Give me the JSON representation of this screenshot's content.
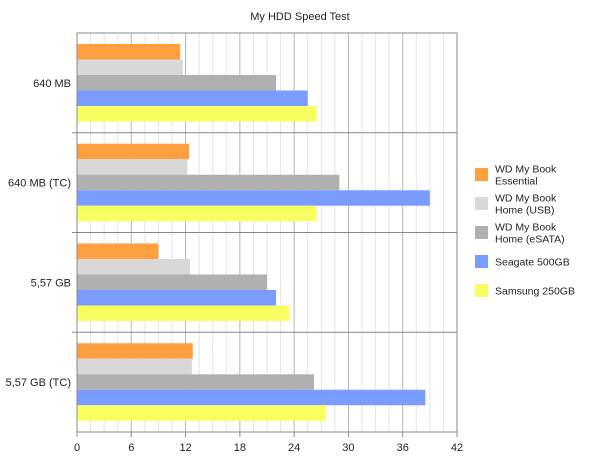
{
  "chart_data": {
    "type": "bar",
    "orientation": "horizontal",
    "title": "My HDD Speed Test",
    "xlabel": "",
    "ylabel": "",
    "xlim": [
      0,
      42
    ],
    "xticks": [
      "0",
      "6",
      "12",
      "18",
      "24",
      "30",
      "36",
      "42"
    ],
    "grid": true,
    "legend_position": "right",
    "categories": [
      "640 MB",
      "640 MB (TC)",
      "5,57 GB",
      "5,57 GB (TC)"
    ],
    "series": [
      {
        "name_lines": [
          "WD My Book",
          "Essential"
        ],
        "color": "#ffa040",
        "values": [
          11.4,
          12.4,
          9.0,
          12.8
        ]
      },
      {
        "name_lines": [
          "WD My Book",
          "Home (USB)"
        ],
        "color": "#d8d8d8",
        "values": [
          11.7,
          12.2,
          12.5,
          12.7
        ]
      },
      {
        "name_lines": [
          "WD My Book",
          "Home (eSATA)"
        ],
        "color": "#b0b0b0",
        "values": [
          22.0,
          29.0,
          21.0,
          26.2
        ]
      },
      {
        "name_lines": [
          "Seagate 500GB"
        ],
        "color": "#7b9cff",
        "values": [
          25.5,
          39.0,
          22.0,
          38.5
        ]
      },
      {
        "name_lines": [
          "Samsung 250GB"
        ],
        "color": "#f8ff60",
        "values": [
          26.5,
          26.5,
          23.5,
          27.5
        ]
      }
    ]
  }
}
